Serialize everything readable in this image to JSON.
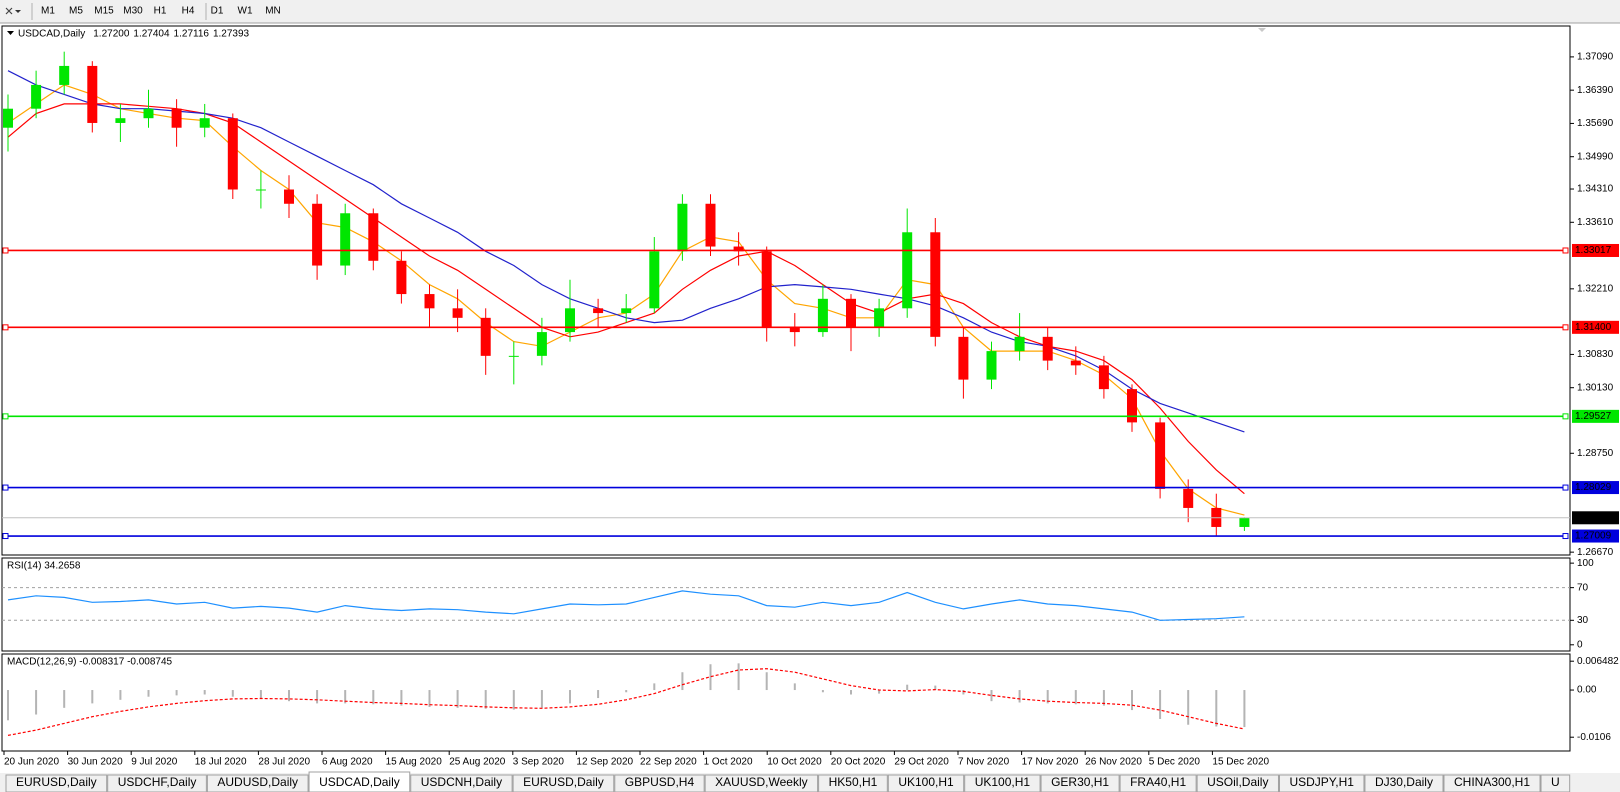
{
  "toolbar": {
    "timeframes": [
      "M1",
      "M5",
      "M15",
      "M30",
      "H1",
      "H4",
      "D1",
      "W1",
      "MN"
    ]
  },
  "tabs": {
    "items": [
      "EURUSD,Daily",
      "USDCHF,Daily",
      "AUDUSD,Daily",
      "USDCAD,Daily",
      "USDCNH,Daily",
      "EURUSD,Daily",
      "GBPUSD,H4",
      "XAUUSD,Weekly",
      "HK50,H1",
      "UK100,H1",
      "UK100,H1",
      "GER30,H1",
      "FRA40,H1",
      "USOil,Daily",
      "USDJPY,H1",
      "DJ30,Daily",
      "CHINA300,H1",
      "U"
    ],
    "active": 3
  },
  "time_axis": {
    "labels": [
      "20 Jun 2020",
      "30 Jun 2020",
      "9 Jul 2020",
      "18 Jul 2020",
      "28 Jul 2020",
      "6 Aug 2020",
      "15 Aug 2020",
      "25 Aug 2020",
      "3 Sep 2020",
      "12 Sep 2020",
      "22 Sep 2020",
      "1 Oct 2020",
      "10 Oct 2020",
      "20 Oct 2020",
      "29 Oct 2020",
      "7 Nov 2020",
      "17 Nov 2020",
      "26 Nov 2020",
      "5 Dec 2020",
      "15 Dec 2020"
    ]
  },
  "chart_data": [
    {
      "type": "candlestick",
      "title": "USDCAD,Daily",
      "header": {
        "values": [
          1.272,
          1.27404,
          1.27116,
          1.27393
        ],
        "value_labels": [
          "1.27200",
          "1.27404",
          "1.27116",
          "1.27393"
        ]
      },
      "up_color": "#00e600",
      "down_color": "#ff0000",
      "open": [
        1.356,
        1.36,
        1.365,
        1.369,
        1.357,
        1.358,
        1.36,
        1.356,
        1.358,
        1.343,
        1.343,
        1.34,
        1.327,
        1.338,
        1.328,
        1.321,
        1.318,
        1.316,
        1.308,
        1.308,
        1.313,
        1.318,
        1.317,
        1.318,
        1.33,
        1.34,
        1.331,
        1.33,
        1.314,
        1.313,
        1.32,
        1.314,
        1.318,
        1.334,
        1.312,
        1.303,
        1.309,
        1.312,
        1.307,
        1.306,
        1.301,
        1.294,
        1.28,
        1.276,
        1.272
      ],
      "high": [
        1.363,
        1.368,
        1.372,
        1.37,
        1.361,
        1.364,
        1.362,
        1.361,
        1.359,
        1.347,
        1.346,
        1.342,
        1.34,
        1.339,
        1.33,
        1.323,
        1.322,
        1.318,
        1.311,
        1.316,
        1.324,
        1.32,
        1.321,
        1.333,
        1.342,
        1.342,
        1.334,
        1.331,
        1.317,
        1.323,
        1.321,
        1.32,
        1.339,
        1.337,
        1.314,
        1.311,
        1.317,
        1.314,
        1.31,
        1.308,
        1.302,
        1.295,
        1.282,
        1.279,
        1.27404
      ],
      "low": [
        1.351,
        1.358,
        1.363,
        1.355,
        1.353,
        1.356,
        1.352,
        1.354,
        1.341,
        1.339,
        1.337,
        1.324,
        1.325,
        1.326,
        1.319,
        1.314,
        1.313,
        1.304,
        1.302,
        1.306,
        1.311,
        1.314,
        1.315,
        1.317,
        1.328,
        1.329,
        1.327,
        1.311,
        1.31,
        1.312,
        1.309,
        1.312,
        1.316,
        1.31,
        1.299,
        1.301,
        1.307,
        1.305,
        1.304,
        1.299,
        1.292,
        1.278,
        1.273,
        1.27,
        1.27116
      ],
      "close": [
        1.36,
        1.365,
        1.369,
        1.357,
        1.358,
        1.36,
        1.356,
        1.358,
        1.343,
        1.343,
        1.34,
        1.327,
        1.338,
        1.328,
        1.321,
        1.318,
        1.316,
        1.308,
        1.308,
        1.313,
        1.318,
        1.317,
        1.318,
        1.33,
        1.34,
        1.331,
        1.33,
        1.314,
        1.313,
        1.32,
        1.314,
        1.318,
        1.334,
        1.312,
        1.303,
        1.309,
        1.312,
        1.307,
        1.306,
        1.301,
        1.294,
        1.28,
        1.276,
        1.272,
        1.27393
      ],
      "lines": [
        {
          "color": "#ffa500",
          "values": [
            1.357,
            1.361,
            1.365,
            1.363,
            1.36,
            1.359,
            1.358,
            1.3575,
            1.352,
            1.347,
            1.343,
            1.336,
            1.335,
            1.332,
            1.328,
            1.323,
            1.32,
            1.315,
            1.311,
            1.31,
            1.313,
            1.316,
            1.317,
            1.321,
            1.33,
            1.333,
            1.332,
            1.324,
            1.319,
            1.318,
            1.316,
            1.316,
            1.324,
            1.323,
            1.314,
            1.309,
            1.309,
            1.309,
            1.307,
            1.304,
            1.299,
            1.288,
            1.28,
            1.276,
            1.2745
          ]
        },
        {
          "color": "#ff0000",
          "values": [
            1.354,
            1.359,
            1.361,
            1.361,
            1.361,
            1.3605,
            1.36,
            1.359,
            1.357,
            1.353,
            1.349,
            1.345,
            1.341,
            1.337,
            1.333,
            1.329,
            1.326,
            1.322,
            1.318,
            1.314,
            1.312,
            1.313,
            1.315,
            1.317,
            1.322,
            1.326,
            1.329,
            1.33,
            1.327,
            1.323,
            1.319,
            1.317,
            1.32,
            1.321,
            1.319,
            1.315,
            1.312,
            1.31,
            1.309,
            1.307,
            1.303,
            1.297,
            1.29,
            1.284,
            1.279
          ]
        },
        {
          "color": "#2222cc",
          "values": [
            1.368,
            1.365,
            1.363,
            1.361,
            1.36,
            1.36,
            1.3595,
            1.359,
            1.358,
            1.356,
            1.353,
            1.35,
            1.347,
            1.344,
            1.34,
            1.337,
            1.334,
            1.33,
            1.327,
            1.323,
            1.32,
            1.318,
            1.316,
            1.315,
            1.3155,
            1.318,
            1.32,
            1.3225,
            1.323,
            1.3225,
            1.322,
            1.321,
            1.32,
            1.3185,
            1.316,
            1.313,
            1.311,
            1.31,
            1.308,
            1.305,
            1.301,
            1.298,
            1.296,
            1.294,
            1.292
          ]
        }
      ],
      "levels": [
        {
          "value": 1.33017,
          "label": "1.33017",
          "color": "#ff0000"
        },
        {
          "value": 1.314,
          "label": "1.31400",
          "color": "#ff0000"
        },
        {
          "value": 1.29527,
          "label": "1.29527",
          "color": "#00e600"
        },
        {
          "value": 1.28029,
          "label": "1.28029",
          "color": "#0000dd"
        },
        {
          "value": 1.27009,
          "label": "1.27009",
          "color": "#0000dd"
        }
      ],
      "ylim": [
        1.2661,
        1.3774
      ],
      "yticks": [
        {
          "value": 1.3709,
          "label": "1.37090"
        },
        {
          "value": 1.3639,
          "label": "1.36390"
        },
        {
          "value": 1.3569,
          "label": "1.35690"
        },
        {
          "value": 1.3499,
          "label": "1.34990"
        },
        {
          "value": 1.3431,
          "label": "1.34310"
        },
        {
          "value": 1.3361,
          "label": "1.33610"
        },
        {
          "value": 1.3221,
          "label": "1.32210"
        },
        {
          "value": 1.3083,
          "label": "1.30830"
        },
        {
          "value": 1.3013,
          "label": "1.30130"
        },
        {
          "value": 1.2875,
          "label": "1.28750"
        },
        {
          "value": 1.2667,
          "label": "1.26670"
        }
      ]
    },
    {
      "type": "line",
      "title": "RSI(14) 34.2658",
      "color": "#1e90ff",
      "values": [
        55,
        60,
        58,
        52,
        53,
        55,
        50,
        52,
        45,
        47,
        45,
        40,
        48,
        44,
        42,
        44,
        43,
        40,
        38,
        44,
        50,
        49,
        50,
        58,
        66,
        62,
        60,
        48,
        46,
        52,
        48,
        52,
        64,
        52,
        44,
        50,
        55,
        50,
        48,
        44,
        40,
        30,
        31,
        32,
        34.2658
      ],
      "ylim": [
        -7.6,
        106.3
      ],
      "yticks": [
        100,
        70,
        30,
        0
      ],
      "grid_levels": [
        70,
        30
      ]
    },
    {
      "type": "macd",
      "title": "MACD(12,26,9) -0.008317 -0.008745",
      "color": "#b4b4b4",
      "signal_color": "#ff0000",
      "values": [
        -0.0068,
        -0.0055,
        -0.004,
        -0.003,
        -0.0022,
        -0.0015,
        -0.0012,
        -0.001,
        -0.0015,
        -0.002,
        -0.0025,
        -0.003,
        -0.003,
        -0.0032,
        -0.0035,
        -0.0038,
        -0.004,
        -0.0042,
        -0.0044,
        -0.004,
        -0.003,
        -0.0018,
        -0.0005,
        0.0015,
        0.004,
        0.0058,
        0.006,
        0.004,
        0.0015,
        -0.0005,
        -0.001,
        -0.0008,
        0.0012,
        0.001,
        -0.001,
        -0.0025,
        -0.0028,
        -0.003,
        -0.0032,
        -0.0035,
        -0.0045,
        -0.0065,
        -0.0078,
        -0.0082,
        -0.008317
      ],
      "signal": [
        -0.0102,
        -0.009,
        -0.0075,
        -0.006,
        -0.0048,
        -0.0038,
        -0.003,
        -0.0024,
        -0.002,
        -0.0019,
        -0.002,
        -0.0022,
        -0.0025,
        -0.0028,
        -0.003,
        -0.0033,
        -0.0035,
        -0.0038,
        -0.004,
        -0.0041,
        -0.0038,
        -0.0032,
        -0.0022,
        -0.0008,
        0.0012,
        0.003,
        0.0045,
        0.0048,
        0.004,
        0.0025,
        0.001,
        0.0,
        -0.0002,
        0.0001,
        -0.0003,
        -0.0012,
        -0.002,
        -0.0025,
        -0.0028,
        -0.003,
        -0.0034,
        -0.0045,
        -0.006,
        -0.0075,
        -0.008745
      ],
      "ylim": [
        -0.0137,
        0.0081
      ],
      "yticks": [
        {
          "value": 0.006482,
          "label": "0.006482"
        },
        {
          "value": 0,
          "label": "0.00"
        },
        {
          "value": -0.0106,
          "label": "-0.0106"
        }
      ]
    }
  ]
}
